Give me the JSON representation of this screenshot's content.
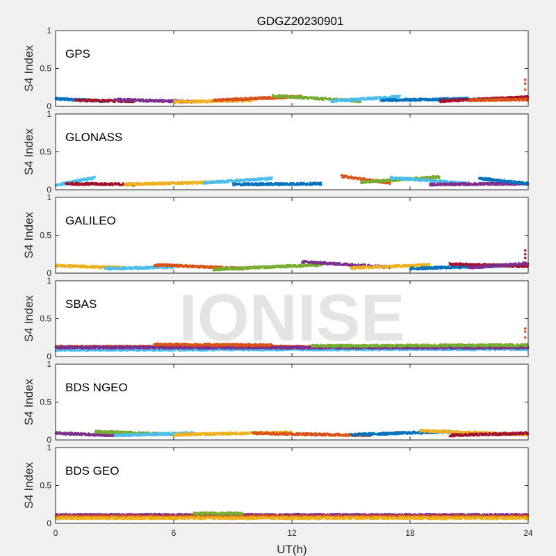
{
  "chart_data": {
    "type": "scatter",
    "title": "GDGZ20230901",
    "xlabel": "UT(h)",
    "ylabel": "S4 Index",
    "xlim": [
      0,
      24
    ],
    "ylim": [
      0,
      1
    ],
    "xticks": [
      0,
      6,
      12,
      18,
      24
    ],
    "yticks": [
      0,
      0.5,
      1
    ],
    "watermark": "IONISE",
    "series_colors": [
      "#0072bd",
      "#d95319",
      "#edb120",
      "#7e2f8e",
      "#77ac30",
      "#4dbeee",
      "#a2142f"
    ],
    "panels": [
      {
        "label": "GPS",
        "baseline": 0.07,
        "segments": [
          {
            "t0": 0.0,
            "t1": 2.5,
            "s0": 0.1,
            "s1": 0.07,
            "color": 0
          },
          {
            "t0": 1.0,
            "t1": 4.0,
            "s0": 0.08,
            "s1": 0.07,
            "color": 6
          },
          {
            "t0": 3.0,
            "t1": 7.0,
            "s0": 0.09,
            "s1": 0.06,
            "color": 3
          },
          {
            "t0": 6.0,
            "t1": 10.0,
            "s0": 0.06,
            "s1": 0.08,
            "color": 2
          },
          {
            "t0": 8.0,
            "t1": 12.5,
            "s0": 0.08,
            "s1": 0.13,
            "color": 1
          },
          {
            "t0": 11.0,
            "t1": 15.5,
            "s0": 0.14,
            "s1": 0.07,
            "color": 4
          },
          {
            "t0": 14.0,
            "t1": 17.5,
            "s0": 0.07,
            "s1": 0.13,
            "color": 5
          },
          {
            "t0": 16.5,
            "t1": 21.0,
            "s0": 0.08,
            "s1": 0.1,
            "color": 0
          },
          {
            "t0": 19.5,
            "t1": 24.0,
            "s0": 0.07,
            "s1": 0.12,
            "color": 6
          },
          {
            "t0": 21.0,
            "t1": 24.0,
            "s0": 0.08,
            "s1": 0.09,
            "color": 1
          }
        ],
        "spikes": [
          {
            "t": 23.85,
            "v": [
              0.35,
              0.3,
              0.22
            ],
            "color": 1
          }
        ]
      },
      {
        "label": "GLONASS",
        "baseline": 0.08,
        "segments": [
          {
            "t0": 0.0,
            "t1": 2.0,
            "s0": 0.06,
            "s1": 0.16,
            "color": 5
          },
          {
            "t0": 0.5,
            "t1": 4.0,
            "s0": 0.08,
            "s1": 0.07,
            "color": 6
          },
          {
            "t0": 3.5,
            "t1": 8.0,
            "s0": 0.07,
            "s1": 0.1,
            "color": 2
          },
          {
            "t0": 7.5,
            "t1": 11.0,
            "s0": 0.09,
            "s1": 0.15,
            "color": 5
          },
          {
            "t0": 9.0,
            "t1": 13.5,
            "s0": 0.07,
            "s1": 0.08,
            "color": 0
          },
          {
            "t0": 14.5,
            "t1": 17.0,
            "s0": 0.18,
            "s1": 0.09,
            "color": 1
          },
          {
            "t0": 15.5,
            "t1": 19.5,
            "s0": 0.1,
            "s1": 0.17,
            "color": 4
          },
          {
            "t0": 17.0,
            "t1": 21.0,
            "s0": 0.16,
            "s1": 0.08,
            "color": 5
          },
          {
            "t0": 19.0,
            "t1": 24.0,
            "s0": 0.07,
            "s1": 0.08,
            "color": 3
          },
          {
            "t0": 21.5,
            "t1": 24.0,
            "s0": 0.15,
            "s1": 0.08,
            "color": 0
          }
        ],
        "spikes": []
      },
      {
        "label": "GALILEO",
        "baseline": 0.07,
        "segments": [
          {
            "t0": 0.0,
            "t1": 3.5,
            "s0": 0.1,
            "s1": 0.07,
            "color": 2
          },
          {
            "t0": 2.5,
            "t1": 6.0,
            "s0": 0.06,
            "s1": 0.08,
            "color": 5
          },
          {
            "t0": 5.0,
            "t1": 9.5,
            "s0": 0.11,
            "s1": 0.06,
            "color": 1
          },
          {
            "t0": 8.0,
            "t1": 13.5,
            "s0": 0.05,
            "s1": 0.11,
            "color": 4
          },
          {
            "t0": 12.5,
            "t1": 17.0,
            "s0": 0.15,
            "s1": 0.08,
            "color": 3
          },
          {
            "t0": 15.0,
            "t1": 19.0,
            "s0": 0.07,
            "s1": 0.11,
            "color": 2
          },
          {
            "t0": 18.0,
            "t1": 23.0,
            "s0": 0.06,
            "s1": 0.1,
            "color": 0
          },
          {
            "t0": 20.0,
            "t1": 24.0,
            "s0": 0.12,
            "s1": 0.09,
            "color": 6
          },
          {
            "t0": 21.0,
            "t1": 24.0,
            "s0": 0.07,
            "s1": 0.13,
            "color": 3
          }
        ],
        "spikes": [
          {
            "t": 23.85,
            "v": [
              0.3,
              0.25,
              0.2
            ],
            "color": 6
          }
        ]
      },
      {
        "label": "SBAS",
        "baseline": 0.12,
        "segments": [
          {
            "t0": 0.0,
            "t1": 24.0,
            "s0": 0.13,
            "s1": 0.13,
            "color": 1
          },
          {
            "t0": 0.0,
            "t1": 24.0,
            "s0": 0.11,
            "s1": 0.11,
            "color": 6
          },
          {
            "t0": 0.0,
            "t1": 24.0,
            "s0": 0.09,
            "s1": 0.1,
            "color": 5
          },
          {
            "t0": 0.0,
            "t1": 24.0,
            "s0": 0.12,
            "s1": 0.12,
            "color": 3
          },
          {
            "t0": 5.0,
            "t1": 11.0,
            "s0": 0.16,
            "s1": 0.15,
            "color": 1
          },
          {
            "t0": 13.0,
            "t1": 24.0,
            "s0": 0.14,
            "s1": 0.15,
            "color": 4
          }
        ],
        "spikes": [
          {
            "t": 23.85,
            "v": [
              0.37,
              0.33,
              0.25
            ],
            "color": 1
          }
        ]
      },
      {
        "label": "BDS NGEO",
        "baseline": 0.07,
        "segments": [
          {
            "t0": 0.0,
            "t1": 3.0,
            "s0": 0.09,
            "s1": 0.06,
            "color": 3
          },
          {
            "t0": 2.0,
            "t1": 6.5,
            "s0": 0.11,
            "s1": 0.07,
            "color": 4
          },
          {
            "t0": 3.0,
            "t1": 7.0,
            "s0": 0.06,
            "s1": 0.09,
            "color": 5
          },
          {
            "t0": 6.0,
            "t1": 12.0,
            "s0": 0.07,
            "s1": 0.1,
            "color": 2
          },
          {
            "t0": 10.0,
            "t1": 16.0,
            "s0": 0.09,
            "s1": 0.06,
            "color": 1
          },
          {
            "t0": 15.0,
            "t1": 20.0,
            "s0": 0.07,
            "s1": 0.11,
            "color": 0
          },
          {
            "t0": 18.5,
            "t1": 24.0,
            "s0": 0.12,
            "s1": 0.07,
            "color": 2
          },
          {
            "t0": 20.0,
            "t1": 24.0,
            "s0": 0.06,
            "s1": 0.09,
            "color": 6
          }
        ],
        "spikes": []
      },
      {
        "label": "BDS GEO",
        "baseline": 0.09,
        "segments": [
          {
            "t0": 0.0,
            "t1": 24.0,
            "s0": 0.11,
            "s1": 0.11,
            "color": 3
          },
          {
            "t0": 0.0,
            "t1": 24.0,
            "s0": 0.09,
            "s1": 0.09,
            "color": 1
          },
          {
            "t0": 0.0,
            "t1": 24.0,
            "s0": 0.07,
            "s1": 0.07,
            "color": 2
          },
          {
            "t0": 7.0,
            "t1": 9.5,
            "s0": 0.13,
            "s1": 0.13,
            "color": 4
          }
        ],
        "spikes": []
      }
    ]
  }
}
